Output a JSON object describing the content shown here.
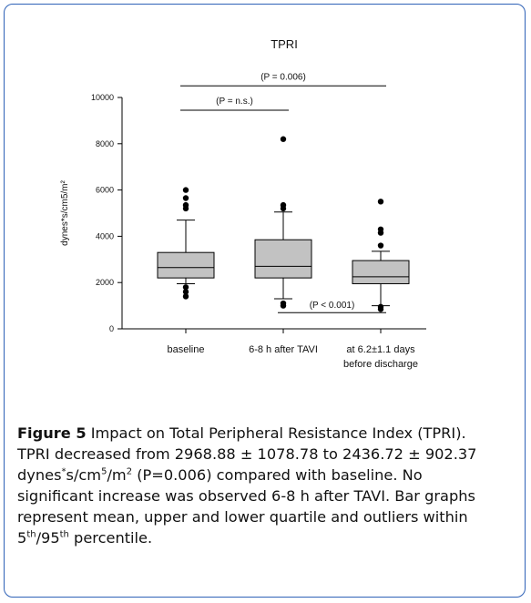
{
  "chart_data": {
    "type": "boxplot",
    "title": "TPRI",
    "ylabel": "dynes*s/cm5/m²",
    "ylim": [
      0,
      10000
    ],
    "yticks": [
      "0",
      "2000",
      "4000",
      "6000",
      "8000",
      "10000"
    ],
    "categories": [
      {
        "label_lines": [
          "baseline"
        ]
      },
      {
        "label_lines": [
          "6-8 h after TAVI"
        ]
      },
      {
        "label_lines": [
          "at 6.2±1.1 days",
          "before discharge"
        ]
      }
    ],
    "boxes": [
      {
        "whisker_low": 1950,
        "q1": 2200,
        "median": 2650,
        "q3": 3300,
        "whisker_high": 4700,
        "outliers": [
          1400,
          1600,
          1800,
          5200,
          5350,
          5650,
          6000
        ]
      },
      {
        "whisker_low": 1300,
        "q1": 2200,
        "median": 2700,
        "q3": 3850,
        "whisker_high": 5050,
        "outliers": [
          1000,
          1100,
          5200,
          5350,
          8200
        ]
      },
      {
        "whisker_low": 1000,
        "q1": 1950,
        "median": 2250,
        "q3": 2950,
        "whisker_high": 3350,
        "outliers": [
          850,
          950,
          3600,
          4150,
          4300,
          5500
        ]
      }
    ],
    "annotations": [
      {
        "text": "(P = 0.006)",
        "from": 0,
        "to": 2,
        "y": 10500
      },
      {
        "text": "(P = n.s.)",
        "from": 0,
        "to": 1,
        "y": 9450
      },
      {
        "text": "(P < 0.001)",
        "from": 1,
        "to": 2,
        "y": 700
      }
    ],
    "colors": {
      "box": "#c2c2c2",
      "outline": "#000000"
    },
    "grid": false
  },
  "caption": {
    "label": "Figure 5",
    "line1": " Impact on Total Peripheral Resistance Index (TPRI).",
    "line2": "TPRI decreased from 2968.88 ± 1078.78 to 2436.72 ± 902.37",
    "line3a": "dynes",
    "line3_sup1": "*",
    "line3b": "s/cm",
    "line3_sup2": "5",
    "line3c": "/m",
    "line3_sup3": "2",
    "line3d": " (P=0.006) compared with baseline. No",
    "line4": "significant increase was observed 6-8 h after TAVI. Bar graphs",
    "line5": "represent mean, upper and lower quartile and outliers within",
    "line6a": "5",
    "line6_sup1": "th",
    "line6b": "/95",
    "line6_sup2": "th",
    "line6c": " percentile."
  }
}
